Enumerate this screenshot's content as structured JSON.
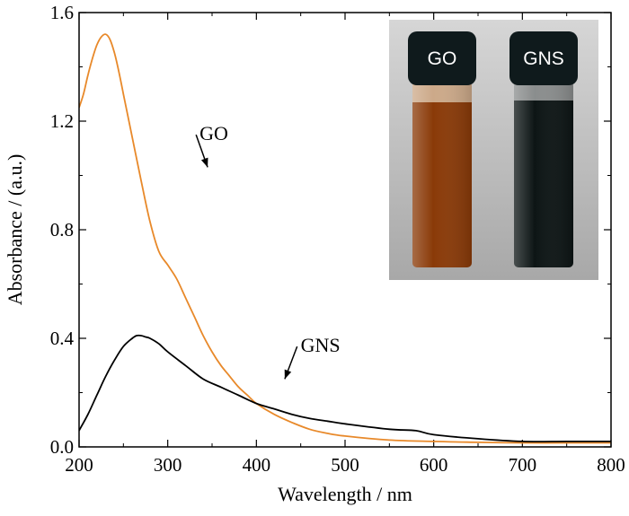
{
  "chart_data": {
    "type": "line",
    "xlabel": "Wavelength / nm",
    "ylabel": "Absorbance / (a.u.)",
    "xlim": [
      200,
      800
    ],
    "ylim": [
      0.0,
      1.6
    ],
    "x_ticks": [
      200,
      300,
      400,
      500,
      600,
      700,
      800
    ],
    "x_tick_labels": [
      "200",
      "300",
      "400",
      "500",
      "600",
      "700",
      "800"
    ],
    "y_ticks": [
      0.0,
      0.4,
      0.8,
      1.2,
      1.6
    ],
    "y_tick_labels": [
      "0.0",
      "0.4",
      "0.8",
      "1.2",
      "1.6"
    ],
    "grid": false,
    "series": [
      {
        "name": "GO",
        "color": "#e8892a",
        "x": [
          200,
          205,
          210,
          215,
          220,
          225,
          230,
          235,
          240,
          245,
          250,
          260,
          270,
          280,
          290,
          300,
          310,
          320,
          330,
          340,
          350,
          360,
          370,
          380,
          390,
          400,
          420,
          440,
          460,
          480,
          500,
          550,
          600,
          650,
          700,
          750,
          800
        ],
        "y": [
          1.25,
          1.3,
          1.37,
          1.43,
          1.48,
          1.51,
          1.52,
          1.5,
          1.45,
          1.38,
          1.3,
          1.14,
          0.98,
          0.83,
          0.72,
          0.67,
          0.62,
          0.55,
          0.48,
          0.41,
          0.35,
          0.3,
          0.26,
          0.22,
          0.19,
          0.16,
          0.12,
          0.09,
          0.065,
          0.05,
          0.04,
          0.025,
          0.02,
          0.017,
          0.015,
          0.015,
          0.015
        ]
      },
      {
        "name": "GNS",
        "color": "#000000",
        "x": [
          200,
          210,
          220,
          230,
          240,
          250,
          260,
          265,
          270,
          275,
          280,
          290,
          300,
          320,
          340,
          360,
          380,
          400,
          420,
          440,
          460,
          480,
          500,
          550,
          580,
          600,
          650,
          700,
          750,
          800
        ],
        "y": [
          0.06,
          0.12,
          0.19,
          0.26,
          0.32,
          0.37,
          0.4,
          0.41,
          0.41,
          0.405,
          0.4,
          0.38,
          0.35,
          0.3,
          0.25,
          0.22,
          0.19,
          0.16,
          0.14,
          0.12,
          0.105,
          0.095,
          0.085,
          0.065,
          0.06,
          0.045,
          0.03,
          0.02,
          0.02,
          0.02
        ]
      }
    ],
    "annotations": [
      {
        "text": "GO",
        "x": 336,
        "y": 1.13,
        "arrow_to": [
          345,
          1.03
        ]
      },
      {
        "text": "GNS",
        "x": 450,
        "y": 0.35,
        "arrow_to": [
          432,
          0.25
        ]
      }
    ],
    "inset": {
      "type": "photo",
      "vials": [
        {
          "label": "GO",
          "liquid_color": "#8a3a08",
          "cap_color": "#0f1a1c"
        },
        {
          "label": "GNS",
          "liquid_color": "#0d1515",
          "cap_color": "#0f1a1c"
        }
      ]
    }
  }
}
